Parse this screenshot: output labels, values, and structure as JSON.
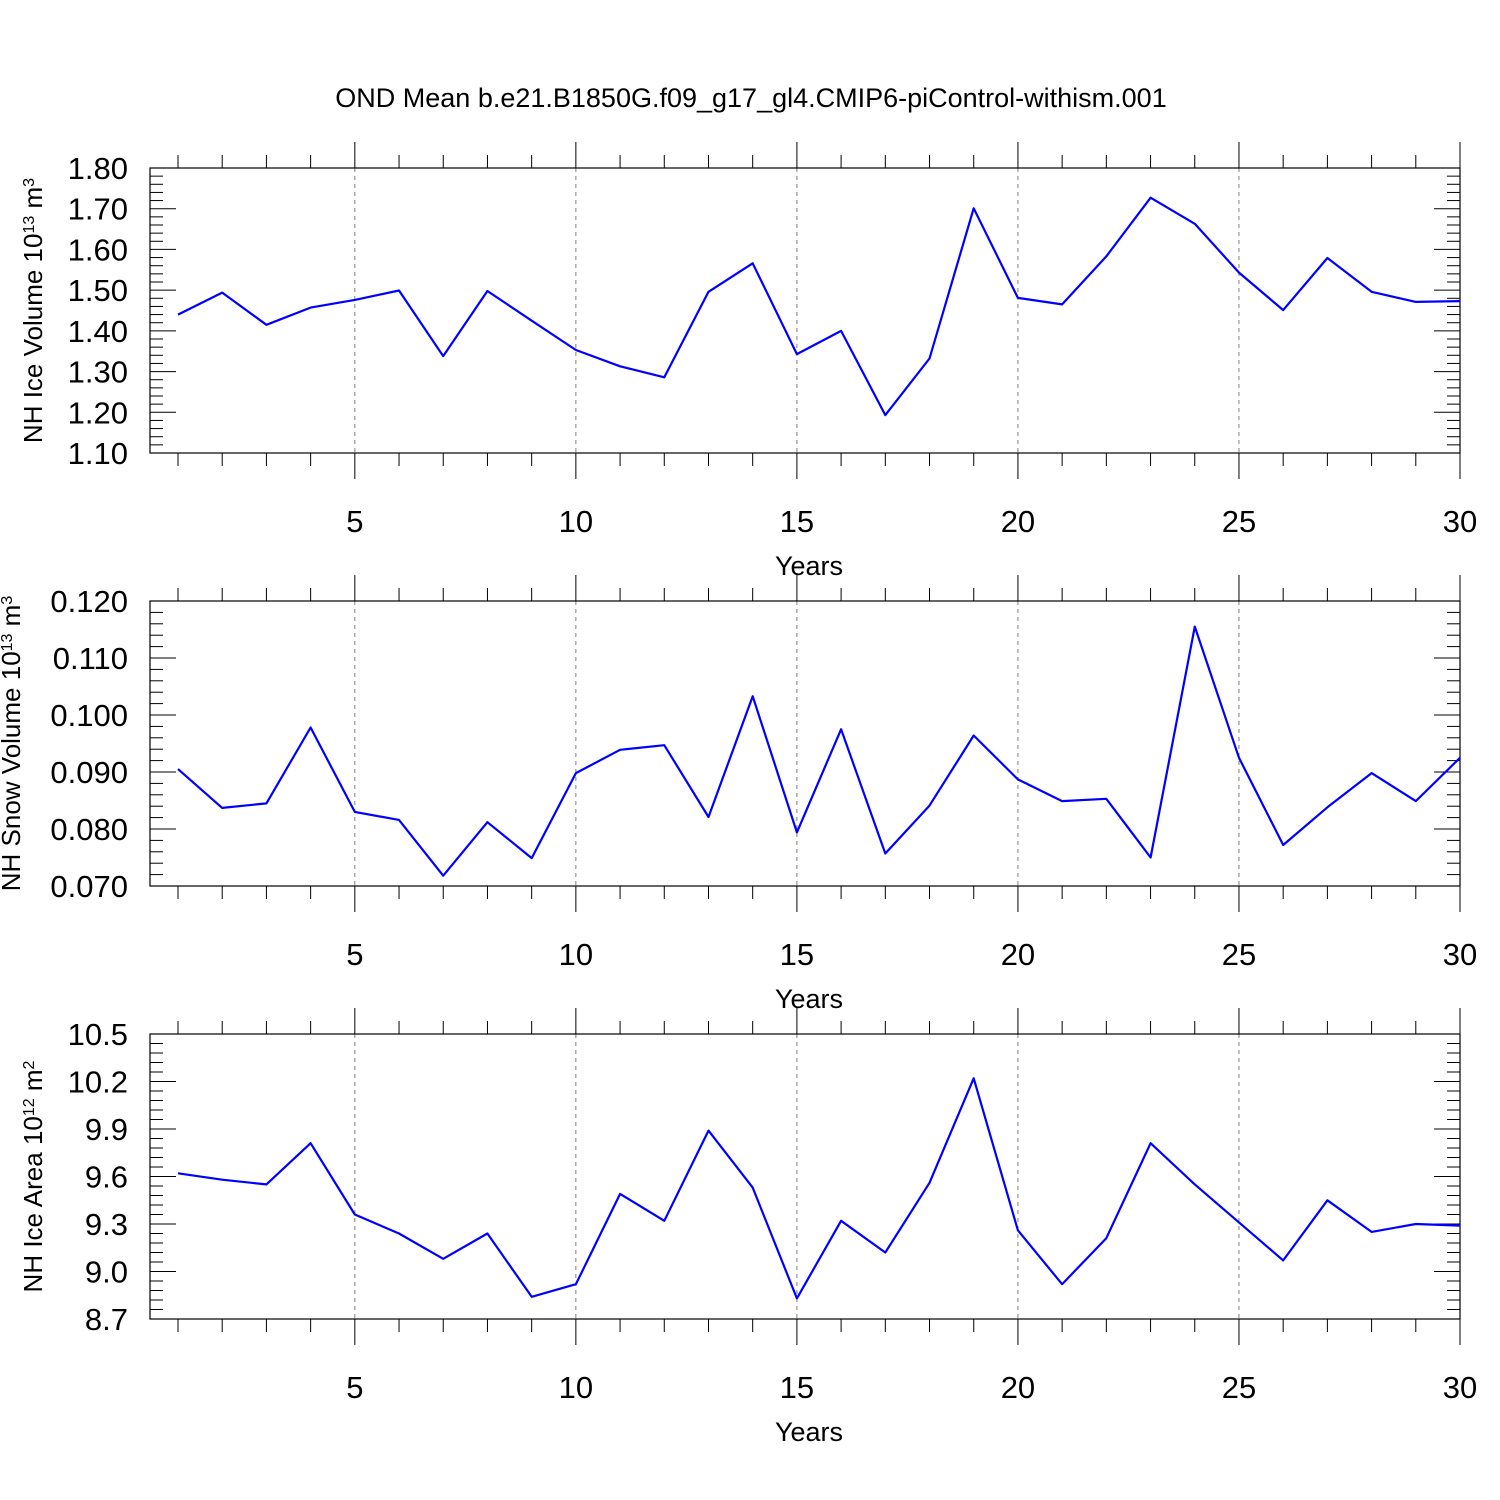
{
  "title": "OND Mean b.e21.B1850G.f09_g17_gl4.CMIP6-piControl-withism.001",
  "line_color": "#0000ff",
  "chart_data": [
    {
      "type": "line",
      "name": "ice-volume",
      "xlabel": "Years",
      "ylabel": {
        "main": "NH Ice Volume 10",
        "sup": "13",
        "unit": " m",
        "unit_sup": "3"
      },
      "xlim": [
        1,
        30
      ],
      "ylim": [
        1.1,
        1.8
      ],
      "xticks": [
        5,
        10,
        15,
        20,
        25,
        30
      ],
      "xtick_labels": [
        "5",
        "10",
        "15",
        "20",
        "25",
        "30"
      ],
      "yticks": [
        1.1,
        1.2,
        1.3,
        1.4,
        1.5,
        1.6,
        1.7,
        1.8
      ],
      "ytick_labels": [
        "1.10",
        "1.20",
        "1.30",
        "1.40",
        "1.50",
        "1.60",
        "1.70",
        "1.80"
      ],
      "x": [
        1,
        2,
        3,
        4,
        5,
        6,
        7,
        8,
        9,
        10,
        11,
        12,
        13,
        14,
        15,
        16,
        17,
        18,
        19,
        20,
        21,
        22,
        23,
        24,
        25,
        26,
        27,
        28,
        29,
        30
      ],
      "values": [
        1.44,
        1.494,
        1.415,
        1.457,
        1.476,
        1.499,
        1.338,
        1.498,
        1.425,
        1.353,
        1.313,
        1.286,
        1.496,
        1.566,
        1.343,
        1.4,
        1.193,
        1.332,
        1.701,
        1.481,
        1.465,
        1.583,
        1.727,
        1.663,
        1.543,
        1.451,
        1.579,
        1.496,
        1.471,
        1.473
      ]
    },
    {
      "type": "line",
      "name": "snow-volume",
      "xlabel": "Years",
      "ylabel": {
        "main": "NH Snow Volume 10",
        "sup": "13",
        "unit": " m",
        "unit_sup": "3"
      },
      "xlim": [
        1,
        30
      ],
      "ylim": [
        0.07,
        0.12
      ],
      "xticks": [
        5,
        10,
        15,
        20,
        25,
        30
      ],
      "xtick_labels": [
        "5",
        "10",
        "15",
        "20",
        "25",
        "30"
      ],
      "yticks": [
        0.07,
        0.08,
        0.09,
        0.1,
        0.11,
        0.12
      ],
      "ytick_labels": [
        "0.070",
        "0.080",
        "0.090",
        "0.100",
        "0.110",
        "0.120"
      ],
      "x": [
        1,
        2,
        3,
        4,
        5,
        6,
        7,
        8,
        9,
        10,
        11,
        12,
        13,
        14,
        15,
        16,
        17,
        18,
        19,
        20,
        21,
        22,
        23,
        24,
        25,
        26,
        27,
        28,
        29,
        30
      ],
      "values": [
        0.0905,
        0.0837,
        0.0845,
        0.0978,
        0.083,
        0.0816,
        0.0718,
        0.0812,
        0.0749,
        0.0898,
        0.0939,
        0.0947,
        0.0821,
        0.1033,
        0.0794,
        0.0975,
        0.0757,
        0.0841,
        0.0964,
        0.0887,
        0.0849,
        0.0853,
        0.075,
        0.1155,
        0.0925,
        0.0772,
        0.0838,
        0.0898,
        0.0849,
        0.0925
      ]
    },
    {
      "type": "line",
      "name": "ice-area",
      "xlabel": "Years",
      "ylabel": {
        "main": "NH Ice Area 10",
        "sup": "12",
        "unit": " m",
        "unit_sup": "2"
      },
      "xlim": [
        1,
        30
      ],
      "ylim": [
        8.7,
        10.5
      ],
      "xticks": [
        5,
        10,
        15,
        20,
        25,
        30
      ],
      "xtick_labels": [
        "5",
        "10",
        "15",
        "20",
        "25",
        "30"
      ],
      "yticks": [
        8.7,
        9.0,
        9.3,
        9.6,
        9.9,
        10.2,
        10.5
      ],
      "ytick_labels": [
        "8.7",
        "9.0",
        "9.3",
        "9.6",
        "9.9",
        "10.2",
        "10.5"
      ],
      "x": [
        1,
        2,
        3,
        4,
        5,
        6,
        7,
        8,
        9,
        10,
        11,
        12,
        13,
        14,
        15,
        16,
        17,
        18,
        19,
        20,
        21,
        22,
        23,
        24,
        25,
        26,
        27,
        28,
        29,
        30
      ],
      "values": [
        9.62,
        9.58,
        9.55,
        9.81,
        9.36,
        9.24,
        9.08,
        9.24,
        8.84,
        8.92,
        9.49,
        9.32,
        9.89,
        9.53,
        8.83,
        9.32,
        9.12,
        9.56,
        10.22,
        9.26,
        8.92,
        9.21,
        9.81,
        9.55,
        9.31,
        9.07,
        9.45,
        9.25,
        9.3,
        9.29
      ]
    }
  ]
}
